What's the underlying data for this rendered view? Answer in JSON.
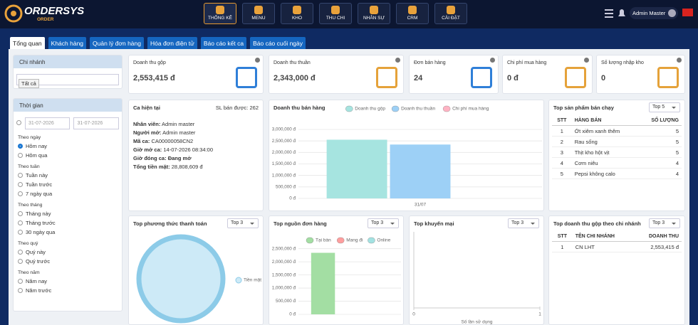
{
  "header": {
    "logo": "ORDERSYS",
    "logo_sub": "ORDER",
    "nav": [
      "THỐNG KÊ",
      "MENU",
      "KHO",
      "THU CHI",
      "NHÂN SỰ",
      "CRM",
      "CÀI ĐẶT"
    ],
    "active_nav": 0,
    "user": "Admin Master"
  },
  "tabs": [
    "Tổng quan",
    "Khách hàng",
    "Quản lý đơn hàng",
    "Hóa đơn điện tử",
    "Báo cáo kết ca",
    "Báo cáo cuối ngày"
  ],
  "active_tab": 0,
  "sidebar": {
    "branch": {
      "title": "Chi nhánh",
      "tag": "Tất cả"
    },
    "time": {
      "title": "Thời gian",
      "from": "31-07-2026",
      "to": "31-07-2026",
      "selected_group": 0,
      "selected_option": 0,
      "groups": [
        {
          "title": "Theo ngày",
          "options": [
            "Hôm nay",
            "Hôm qua"
          ]
        },
        {
          "title": "Theo tuần",
          "options": [
            "Tuần này",
            "Tuần trước",
            "7 ngày qua"
          ]
        },
        {
          "title": "Theo tháng",
          "options": [
            "Tháng này",
            "Tháng trước",
            "30 ngày qua"
          ]
        },
        {
          "title": "Theo quý",
          "options": [
            "Quý này",
            "Quý trước"
          ]
        },
        {
          "title": "Theo năm",
          "options": [
            "Năm nay",
            "Năm trước"
          ]
        }
      ]
    }
  },
  "kpis": [
    {
      "label": "Doanh thu gộp",
      "value": "2,553,415 đ"
    },
    {
      "label": "Doanh thu thuần",
      "value": "2,343,000 đ"
    },
    {
      "label": "Đơn bán hàng",
      "value": "24"
    },
    {
      "label": "Chi phí mua hàng",
      "value": "0 đ"
    },
    {
      "label": "Số lượng nhập kho",
      "value": "0"
    }
  ],
  "shift": {
    "title": "Ca hiện tại",
    "sold": "SL bán được: 262",
    "rows": [
      [
        "Nhân viên:",
        "Admin master"
      ],
      [
        "Người mở:",
        "Admin master"
      ],
      [
        "Mã ca:",
        "CA00000058CN2"
      ],
      [
        "Giờ mở ca:",
        "14-07-2026 08:34:00"
      ],
      [
        "Giờ đóng ca:",
        "Đang mở"
      ],
      [
        "Tổng tiền mặt:",
        "28,808,609 đ"
      ]
    ]
  },
  "top_products": {
    "title": "Top sản phẩm bán chạy",
    "select": "Top 5",
    "columns": [
      "STT",
      "HÀNG BÁN",
      "SỐ LƯỢNG"
    ],
    "rows": [
      [
        1,
        "Ớt xiêm xanh thêm",
        5
      ],
      [
        2,
        "Rau sống",
        5
      ],
      [
        3,
        "Thịt kho hột vịt",
        5
      ],
      [
        4,
        "Cơm niêu",
        4
      ],
      [
        5,
        "Pepsi không calo",
        4
      ]
    ]
  },
  "top_branches": {
    "title": "Top doanh thu gộp theo chi nhánh",
    "select": "Top 3",
    "columns": [
      "STT",
      "TÊN CHI NHÁNH",
      "DOANH THU"
    ],
    "rows": [
      [
        1,
        "CN LHT",
        "2,553,415 đ"
      ]
    ]
  },
  "chart_data": [
    {
      "type": "bar",
      "title": "Doanh thu bán hàng",
      "categories": [
        "31/07"
      ],
      "series": [
        {
          "name": "Doanh thu gộp",
          "color": "#a6e4e0",
          "values": [
            2553415
          ]
        },
        {
          "name": "Doanh thu thuần",
          "color": "#9dd0f6",
          "values": [
            2343000
          ]
        },
        {
          "name": "Chi phí mua hàng",
          "color": "#ffb3c3",
          "values": [
            0
          ]
        }
      ],
      "ylim": [
        0,
        3000000
      ],
      "yticks": [
        {
          "value": 0,
          "label": "0 đ"
        },
        {
          "value": 500000,
          "label": "500,000 đ"
        },
        {
          "value": 1000000,
          "label": "1,000,000 đ"
        },
        {
          "value": 1500000,
          "label": "1,500,000 đ"
        },
        {
          "value": 2000000,
          "label": "2,000,000 đ"
        },
        {
          "value": 2500000,
          "label": "2,500,000 đ"
        },
        {
          "value": 3000000,
          "label": "3,000,000 đ"
        }
      ],
      "grid": true
    },
    {
      "type": "pie",
      "title": "Top phương thức thanh toán",
      "select": "Top 3",
      "categories": [
        "Tiền mặt"
      ],
      "values": [
        100
      ],
      "colors": [
        "#cdeaf7"
      ]
    },
    {
      "type": "bar",
      "title": "Top nguồn đơn hàng",
      "select": "Top 3",
      "categories": [
        null
      ],
      "series": [
        {
          "name": "Tại bàn",
          "color": "#a3dea3",
          "values": [
            2343000
          ]
        },
        {
          "name": "Mang đi",
          "color": "#ff9e9e",
          "values": [
            0
          ]
        },
        {
          "name": "Online",
          "color": "#a3e2e2",
          "values": [
            0
          ]
        }
      ],
      "ylim": [
        0,
        2600000
      ],
      "yticks": [
        {
          "value": 0,
          "label": "0 đ"
        },
        {
          "value": 500000,
          "label": "500,000 đ"
        },
        {
          "value": 1000000,
          "label": "1,000,000 đ"
        },
        {
          "value": 1500000,
          "label": "1,500,000 đ"
        },
        {
          "value": 2000000,
          "label": "2,000,000 đ"
        },
        {
          "value": 2500000,
          "label": "2,500,000 đ"
        }
      ],
      "grid": true
    },
    {
      "type": "hbar",
      "title": "Top khuyến mại",
      "select": "Top 3",
      "x_label": "Số lần sử dụng",
      "xlim": [
        0,
        1
      ],
      "xticks": [
        0,
        1
      ]
    }
  ]
}
